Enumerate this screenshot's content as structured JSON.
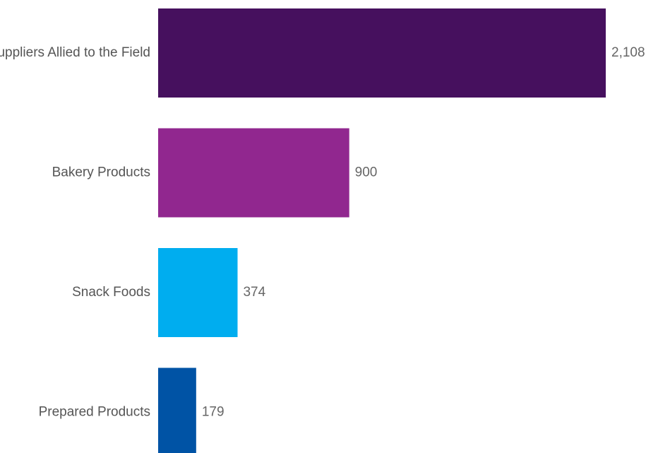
{
  "chart_data": {
    "type": "bar",
    "orientation": "horizontal",
    "categories": [
      "Suppliers Allied to the Field",
      "Bakery Products",
      "Snack Foods",
      "Prepared Products"
    ],
    "values": [
      2108,
      900,
      374,
      179
    ],
    "value_labels": [
      "2,108",
      "900",
      "374",
      "179"
    ],
    "colors": [
      "#46105e",
      "#91278f",
      "#00adef",
      "#0053a5"
    ],
    "title": "",
    "xlabel": "",
    "ylabel": "",
    "grid": false,
    "legend": "none"
  }
}
